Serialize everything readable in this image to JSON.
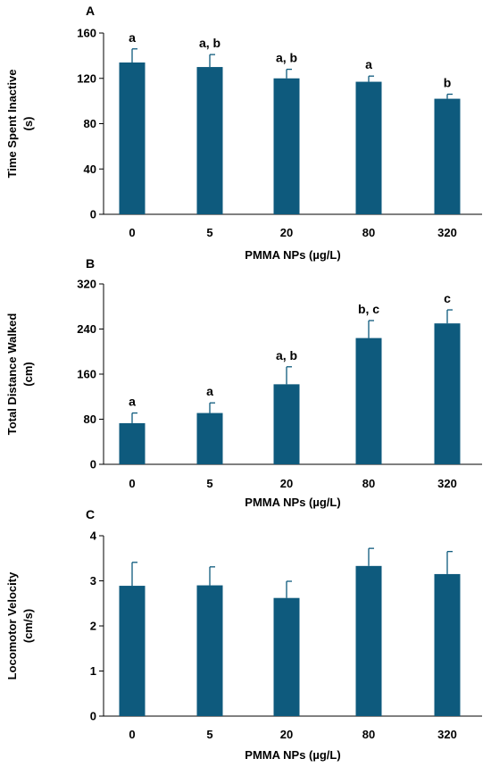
{
  "colors": {
    "bar": "#0e5a7d",
    "axis": "#000000",
    "error_bar": "#0e5a7d"
  },
  "chart_data": [
    {
      "type": "bar",
      "panel": "A",
      "categories": [
        "0",
        "5",
        "20",
        "80",
        "320"
      ],
      "values": [
        134,
        130,
        120,
        117,
        102
      ],
      "errors": [
        12,
        11,
        8,
        5,
        4
      ],
      "labels": [
        "a",
        "a, b",
        "a, b",
        "a",
        "b"
      ],
      "ylabel_lines": [
        "Time Spent Inactive",
        "(s)"
      ],
      "xlabel": "PMMA NPs (µg/L)",
      "ylim": [
        0,
        160
      ],
      "yticks": [
        "0",
        "40",
        "80",
        "120",
        "160"
      ],
      "grid": false
    },
    {
      "type": "bar",
      "panel": "B",
      "categories": [
        "0",
        "5",
        "20",
        "80",
        "320"
      ],
      "values": [
        73,
        91,
        142,
        224,
        250
      ],
      "errors": [
        18,
        18,
        31,
        31,
        24
      ],
      "labels": [
        "a",
        "a",
        "a, b",
        "b, c",
        "c"
      ],
      "ylabel_lines": [
        "Total Distance Walked",
        "(cm)"
      ],
      "xlabel": "PMMA NPs (µg/L)",
      "ylim": [
        0,
        320
      ],
      "yticks": [
        "0",
        "80",
        "160",
        "240",
        "320"
      ],
      "grid": false
    },
    {
      "type": "bar",
      "panel": "C",
      "categories": [
        "0",
        "5",
        "20",
        "80",
        "320"
      ],
      "values": [
        2.89,
        2.9,
        2.62,
        3.33,
        3.15
      ],
      "errors": [
        0.52,
        0.41,
        0.37,
        0.39,
        0.5
      ],
      "labels": [
        "",
        "",
        "",
        "",
        ""
      ],
      "ylabel_lines": [
        "Locomotor Velocity",
        "(cm/s)"
      ],
      "xlabel": "PMMA NPs (µg/L)",
      "ylim": [
        0,
        4
      ],
      "yticks": [
        "0",
        "1",
        "2",
        "3",
        "4"
      ],
      "grid": false
    }
  ]
}
